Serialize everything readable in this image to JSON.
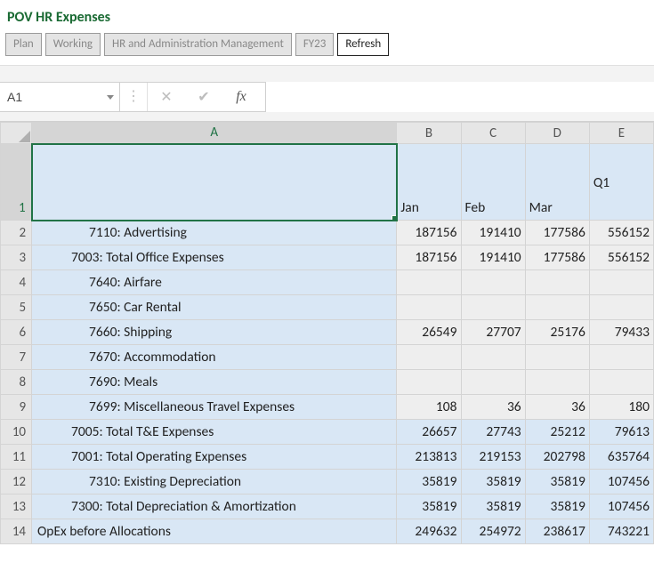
{
  "pov": {
    "title": "POV HR Expenses",
    "buttons": [
      {
        "label": "Plan",
        "enabled": false
      },
      {
        "label": "Working",
        "enabled": false
      },
      {
        "label": "HR and Administration Management",
        "enabled": false
      },
      {
        "label": "FY23",
        "enabled": false
      },
      {
        "label": "Refresh",
        "enabled": true
      }
    ]
  },
  "formula_bar": {
    "namebox": "A1",
    "cancel": "✕",
    "enter": "✔",
    "fx": "fx",
    "formula": ""
  },
  "colors": {
    "blue_fill": "#d9e7f5",
    "grey_fill": "#eeeeee",
    "headers_bg": "#e6e6e6",
    "select_green": "#217346",
    "title_green": "#1a6a33"
  },
  "grid": {
    "col_headers": [
      "A",
      "B",
      "C",
      "D",
      "E"
    ],
    "row_headers": [
      "1",
      "2",
      "3",
      "4",
      "5",
      "6",
      "7",
      "8",
      "9",
      "10",
      "11",
      "12",
      "13",
      "14"
    ],
    "header_row": {
      "A": "",
      "B": "Jan",
      "C": "Feb",
      "D": "Mar",
      "E": "Q1"
    },
    "rows": [
      {
        "indent": "indent2",
        "bg": "blue",
        "label": "7110: Advertising",
        "vals": [
          "187156",
          "191410",
          "177586",
          "556152"
        ],
        "valbg": "grey"
      },
      {
        "indent": "indent1",
        "bg": "blue",
        "label": "7003: Total Office Expenses",
        "vals": [
          "187156",
          "191410",
          "177586",
          "556152"
        ],
        "valbg": "grey"
      },
      {
        "indent": "indent2",
        "bg": "blue",
        "label": "7640: Airfare",
        "vals": [
          "",
          "",
          "",
          ""
        ],
        "valbg": "grey"
      },
      {
        "indent": "indent2",
        "bg": "blue",
        "label": "7650: Car Rental",
        "vals": [
          "",
          "",
          "",
          ""
        ],
        "valbg": "grey"
      },
      {
        "indent": "indent2",
        "bg": "blue",
        "label": "7660: Shipping",
        "vals": [
          "26549",
          "27707",
          "25176",
          "79433"
        ],
        "valbg": "grey"
      },
      {
        "indent": "indent2",
        "bg": "blue",
        "label": "7670: Accommodation",
        "vals": [
          "",
          "",
          "",
          ""
        ],
        "valbg": "grey"
      },
      {
        "indent": "indent2",
        "bg": "blue",
        "label": "7690: Meals",
        "vals": [
          "",
          "",
          "",
          ""
        ],
        "valbg": "grey"
      },
      {
        "indent": "indent2",
        "bg": "blue",
        "label": "7699: Miscellaneous Travel Expenses",
        "vals": [
          "108",
          "36",
          "36",
          "180"
        ],
        "valbg": "grey"
      },
      {
        "indent": "indent1",
        "bg": "blue",
        "label": "7005: Total T&E Expenses",
        "vals": [
          "26657",
          "27743",
          "25212",
          "79613"
        ],
        "valbg": "blue"
      },
      {
        "indent": "indent1",
        "bg": "blue",
        "label": "7001: Total Operating Expenses",
        "vals": [
          "213813",
          "219153",
          "202798",
          "635764"
        ],
        "valbg": "blue"
      },
      {
        "indent": "indent2",
        "bg": "blue",
        "label": "7310: Existing Depreciation",
        "vals": [
          "35819",
          "35819",
          "35819",
          "107456"
        ],
        "valbg": "blue"
      },
      {
        "indent": "indent1",
        "bg": "blue",
        "label": "7300: Total Depreciation & Amortization",
        "vals": [
          "35819",
          "35819",
          "35819",
          "107456"
        ],
        "valbg": "blue"
      },
      {
        "indent": "indent0",
        "bg": "blue",
        "label": "OpEx before Allocations",
        "vals": [
          "249632",
          "254972",
          "238617",
          "743221"
        ],
        "valbg": "blue"
      }
    ]
  }
}
